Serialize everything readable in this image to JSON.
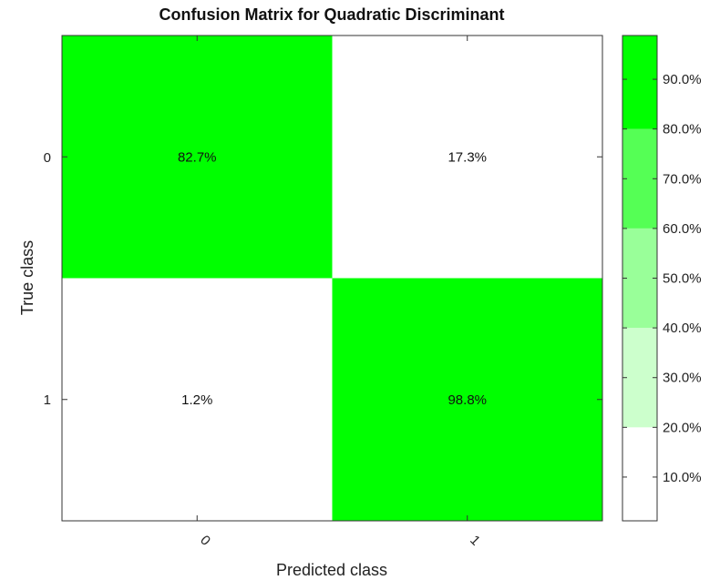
{
  "chart_data": {
    "type": "heatmap",
    "title": "Confusion Matrix for Quadratic Discriminant",
    "xlabel": "Predicted class",
    "ylabel": "True class",
    "row_labels": [
      "0",
      "1"
    ],
    "col_labels": [
      "0",
      "1"
    ],
    "values": [
      [
        82.7,
        17.3
      ],
      [
        1.2,
        98.8
      ]
    ],
    "cell_labels": [
      [
        "82.7%",
        "17.3%"
      ],
      [
        "1.2%",
        "98.8%"
      ]
    ],
    "colorbar": {
      "ticks": [
        "10.0%",
        "20.0%",
        "30.0%",
        "40.0%",
        "50.0%",
        "60.0%",
        "70.0%",
        "80.0%",
        "90.0%"
      ],
      "tick_values": [
        10,
        20,
        30,
        40,
        50,
        60,
        70,
        80,
        90
      ],
      "range": [
        1.2,
        98.8
      ],
      "bands": [
        {
          "from": 1.2,
          "to": 20,
          "color": "#ffffff"
        },
        {
          "from": 20,
          "to": 40,
          "color": "#ccffcc"
        },
        {
          "from": 40,
          "to": 60,
          "color": "#99ff99"
        },
        {
          "from": 60,
          "to": 80,
          "color": "#55ff55"
        },
        {
          "from": 80,
          "to": 98.8,
          "color": "#00ff00"
        }
      ]
    }
  }
}
